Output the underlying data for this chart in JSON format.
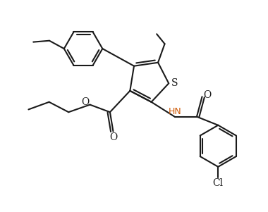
{
  "bg_color": "#ffffff",
  "line_color": "#1a1a1a",
  "hn_color": "#cc5500",
  "line_width": 1.5,
  "figsize": [
    3.8,
    3.01
  ],
  "dpi": 100,
  "xlim": [
    0,
    10
  ],
  "ylim": [
    0,
    7.9
  ]
}
